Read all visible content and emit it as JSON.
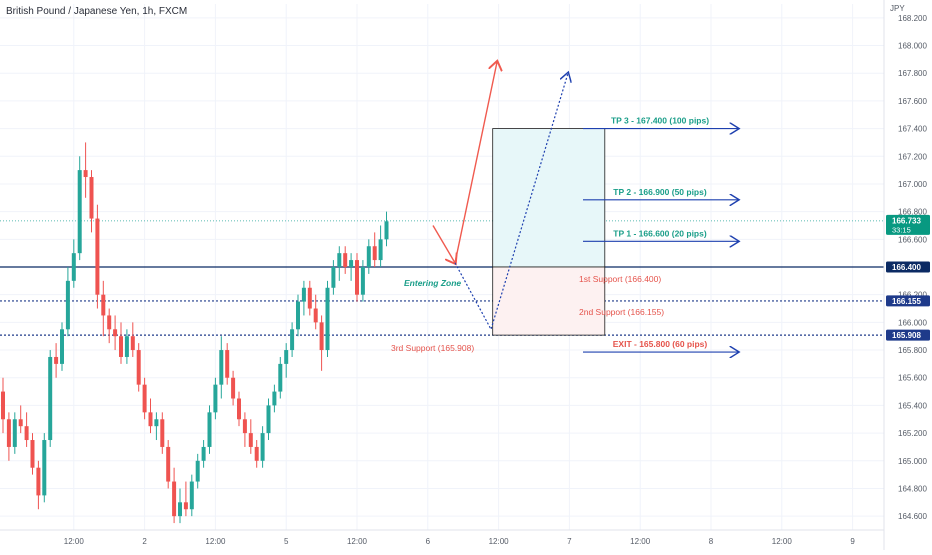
{
  "title": "British Pound / Japanese Yen, 1h, FXCM",
  "currency": "JPY",
  "chart_data": {
    "type": "candlestick",
    "symbol": "GBP/JPY",
    "timeframe": "1h",
    "ylim": [
      164.5,
      168.3
    ],
    "y_ticks": [
      {
        "v": 168.2,
        "label": "168.200"
      },
      {
        "v": 168.0,
        "label": "168.000"
      },
      {
        "v": 167.8,
        "label": "167.800"
      },
      {
        "v": 167.6,
        "label": "167.600"
      },
      {
        "v": 167.4,
        "label": "167.400"
      },
      {
        "v": 167.2,
        "label": "167.200"
      },
      {
        "v": 167.0,
        "label": "167.000"
      },
      {
        "v": 166.8,
        "label": "166.800"
      },
      {
        "v": 166.6,
        "label": "166.600"
      },
      {
        "v": 166.2,
        "label": "166.200"
      },
      {
        "v": 166.0,
        "label": "166.000"
      },
      {
        "v": 165.8,
        "label": "165.800"
      },
      {
        "v": 165.6,
        "label": "165.600"
      },
      {
        "v": 165.4,
        "label": "165.400"
      },
      {
        "v": 165.2,
        "label": "165.200"
      },
      {
        "v": 165.0,
        "label": "165.000"
      },
      {
        "v": 164.8,
        "label": "164.800"
      },
      {
        "v": 164.6,
        "label": "164.600"
      }
    ],
    "x_ticks": [
      {
        "i": 12,
        "label": "12:00"
      },
      {
        "i": 24,
        "label": "2"
      },
      {
        "i": 36,
        "label": "12:00"
      },
      {
        "i": 48,
        "label": "5"
      },
      {
        "i": 60,
        "label": "12:00"
      },
      {
        "i": 72,
        "label": "6"
      },
      {
        "i": 84,
        "label": "12:00"
      },
      {
        "i": 96,
        "label": "7"
      },
      {
        "i": 108,
        "label": "12:00"
      },
      {
        "i": 120,
        "label": "8"
      },
      {
        "i": 132,
        "label": "12:00"
      },
      {
        "i": 144,
        "label": "9"
      }
    ],
    "candles": [
      [
        165.5,
        165.6,
        165.2,
        165.3
      ],
      [
        165.3,
        165.35,
        165.0,
        165.1
      ],
      [
        165.1,
        165.35,
        165.05,
        165.3
      ],
      [
        165.3,
        165.4,
        165.2,
        165.25
      ],
      [
        165.25,
        165.35,
        165.1,
        165.15
      ],
      [
        165.15,
        165.2,
        164.9,
        164.95
      ],
      [
        164.95,
        165.0,
        164.65,
        164.75
      ],
      [
        164.75,
        165.2,
        164.7,
        165.15
      ],
      [
        165.15,
        165.8,
        165.1,
        165.75
      ],
      [
        165.75,
        165.85,
        165.6,
        165.7
      ],
      [
        165.7,
        166.0,
        165.65,
        165.95
      ],
      [
        165.95,
        166.4,
        165.9,
        166.3
      ],
      [
        166.3,
        166.6,
        166.25,
        166.5
      ],
      [
        166.5,
        167.2,
        166.45,
        167.1
      ],
      [
        167.1,
        167.3,
        166.9,
        167.05
      ],
      [
        167.05,
        167.1,
        166.65,
        166.75
      ],
      [
        166.75,
        166.85,
        166.1,
        166.2
      ],
      [
        166.2,
        166.3,
        165.9,
        166.05
      ],
      [
        166.05,
        166.1,
        165.85,
        165.95
      ],
      [
        165.95,
        166.05,
        165.8,
        165.9
      ],
      [
        165.9,
        166.0,
        165.7,
        165.75
      ],
      [
        165.75,
        165.95,
        165.7,
        165.9
      ],
      [
        165.9,
        166.0,
        165.75,
        165.8
      ],
      [
        165.8,
        165.85,
        165.5,
        165.55
      ],
      [
        165.55,
        165.6,
        165.3,
        165.35
      ],
      [
        165.35,
        165.45,
        165.2,
        165.25
      ],
      [
        165.25,
        165.35,
        165.15,
        165.3
      ],
      [
        165.3,
        165.35,
        165.05,
        165.1
      ],
      [
        165.1,
        165.15,
        164.8,
        164.85
      ],
      [
        164.85,
        164.95,
        164.55,
        164.6
      ],
      [
        164.6,
        164.8,
        164.55,
        164.7
      ],
      [
        164.7,
        164.85,
        164.6,
        164.65
      ],
      [
        164.65,
        164.9,
        164.6,
        164.85
      ],
      [
        164.85,
        165.05,
        164.8,
        165.0
      ],
      [
        165.0,
        165.15,
        164.95,
        165.1
      ],
      [
        165.1,
        165.4,
        165.05,
        165.35
      ],
      [
        165.35,
        165.6,
        165.3,
        165.55
      ],
      [
        165.55,
        165.9,
        165.45,
        165.8
      ],
      [
        165.8,
        165.85,
        165.55,
        165.6
      ],
      [
        165.6,
        165.65,
        165.4,
        165.45
      ],
      [
        165.45,
        165.5,
        165.25,
        165.3
      ],
      [
        165.3,
        165.35,
        165.1,
        165.2
      ],
      [
        165.2,
        165.3,
        165.05,
        165.1
      ],
      [
        165.1,
        165.15,
        164.95,
        165.0
      ],
      [
        165.0,
        165.25,
        164.95,
        165.2
      ],
      [
        165.2,
        165.45,
        165.15,
        165.4
      ],
      [
        165.4,
        165.55,
        165.35,
        165.5
      ],
      [
        165.5,
        165.75,
        165.45,
        165.7
      ],
      [
        165.7,
        165.85,
        165.6,
        165.8
      ],
      [
        165.8,
        166.0,
        165.75,
        165.95
      ],
      [
        165.95,
        166.2,
        165.9,
        166.15
      ],
      [
        166.15,
        166.3,
        166.05,
        166.25
      ],
      [
        166.25,
        166.3,
        166.05,
        166.1
      ],
      [
        166.1,
        166.2,
        165.95,
        166.0
      ],
      [
        166.0,
        166.05,
        165.65,
        165.8
      ],
      [
        165.8,
        166.3,
        165.75,
        166.25
      ],
      [
        166.25,
        166.45,
        166.2,
        166.4
      ],
      [
        166.4,
        166.55,
        166.3,
        166.5
      ],
      [
        166.5,
        166.55,
        166.35,
        166.4
      ],
      [
        166.4,
        166.5,
        166.3,
        166.45
      ],
      [
        166.45,
        166.5,
        166.15,
        166.2
      ],
      [
        166.2,
        166.45,
        166.15,
        166.4
      ],
      [
        166.4,
        166.6,
        166.35,
        166.55
      ],
      [
        166.55,
        166.65,
        166.4,
        166.45
      ],
      [
        166.45,
        166.7,
        166.4,
        166.6
      ],
      [
        166.6,
        166.8,
        166.55,
        166.73
      ]
    ]
  },
  "annotations": {
    "levels": [
      {
        "value": 166.4,
        "label": "1st Support (166.400)",
        "color": "#e5534b"
      },
      {
        "value": 166.155,
        "label": "2nd Support (166.155)",
        "color": "#e5534b"
      },
      {
        "value": 165.908,
        "label": "3rd Support (165.908)",
        "color": "#e5534b"
      }
    ],
    "targets": [
      {
        "value": 167.4,
        "label": "TP 3 - 167.400 (100 pips)",
        "color": "#1a9e89"
      },
      {
        "value": 166.9,
        "label": "TP 2 - 166.900 (50 pips)",
        "color": "#1a9e89"
      },
      {
        "value": 166.6,
        "label": "TP 1 - 166.600 (20 pips)",
        "color": "#1a9e89"
      },
      {
        "value": 165.8,
        "label": "EXIT - 165.800 (60 pips)",
        "color": "#e5534b"
      }
    ],
    "entering_zone": "Entering Zone",
    "position_box": {
      "entry": 166.4,
      "target": 167.4,
      "stop": 165.908,
      "from_index": 83,
      "to_index": 102
    }
  },
  "price_badges": [
    {
      "value": 166.733,
      "label": "166.733",
      "sub": "33:15",
      "color": "#089981"
    },
    {
      "value": 166.4,
      "label": "166.400",
      "color": "#0b2a63"
    },
    {
      "value": 166.155,
      "label": "166.155",
      "color": "#1e3a8a"
    },
    {
      "value": 165.908,
      "label": "165.908",
      "color": "#1e3a8a"
    }
  ],
  "colors": {
    "up": "#26a69a",
    "down": "#ef5350",
    "grid": "#f0f3fa",
    "axis_text": "#555b66",
    "level_line": "#1e3a8a"
  }
}
